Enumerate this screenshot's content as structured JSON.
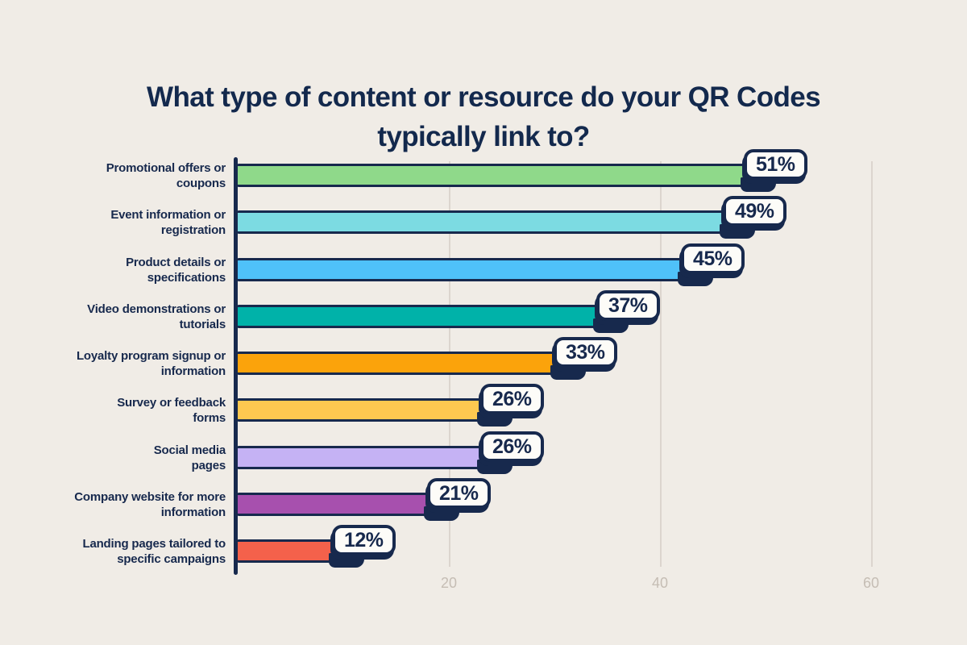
{
  "page": {
    "background_color": "#f0ece6",
    "text_color": "#13294d"
  },
  "title": "What type of content or resource do your QR Codes\ntypically link to?",
  "chart_data": {
    "type": "bar",
    "orientation": "horizontal",
    "title": "What type of content or resource do your QR Codes typically link to?",
    "categories": [
      "Promotional offers or\ncoupons",
      "Event information or\nregistration",
      "Product details or\nspecifications",
      "Video demonstrations or\ntutorials",
      "Loyalty program signup or\ninformation",
      "Survey or feedback\nforms",
      "Social media\npages",
      "Company website for more\ninformation",
      "Landing pages tailored to\nspecific campaigns"
    ],
    "values": [
      51,
      49,
      45,
      37,
      33,
      26,
      26,
      21,
      12
    ],
    "value_labels": [
      "51%",
      "49%",
      "45%",
      "37%",
      "33%",
      "26%",
      "26%",
      "21%",
      "12%"
    ],
    "bar_colors": [
      "#8fd98a",
      "#7cdbe2",
      "#4fc1f9",
      "#00b2a9",
      "#fba30b",
      "#fdc850",
      "#c5b2f4",
      "#a750ae",
      "#f4614b"
    ],
    "outline_color": "#17294d",
    "badge_bg_color": "#fdfcf8",
    "gridline_color": "#dcd5ce",
    "tick_color": "#c5bdb4",
    "xlabel": "",
    "ylabel": "",
    "x_ticks": [
      20,
      40,
      60
    ],
    "xlim": [
      0,
      61.5
    ],
    "grid": "vertical-only",
    "legend": "none"
  }
}
